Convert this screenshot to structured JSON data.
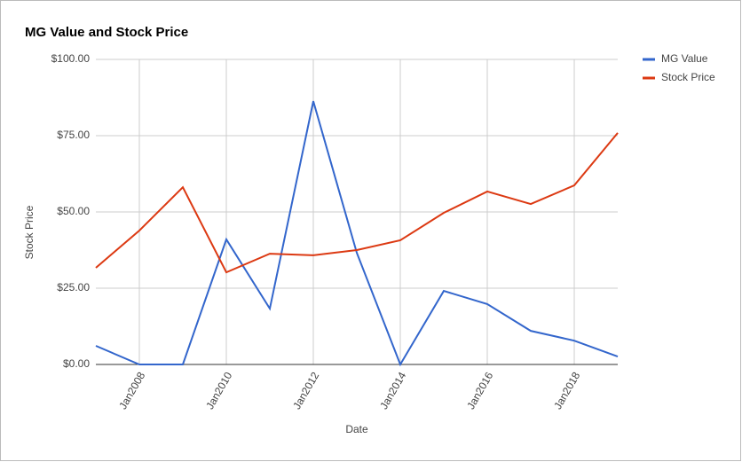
{
  "chart_data": {
    "type": "line",
    "title": "MG Value and Stock Price",
    "x_label": "Date",
    "y_label": "Stock Price",
    "categories": [
      null,
      "Jan2008",
      null,
      "Jan2010",
      null,
      "Jan2012",
      null,
      "Jan2014",
      null,
      "Jan2016",
      null,
      "Jan2018",
      null
    ],
    "series": [
      {
        "name": "MG Value",
        "color": "#3366cc",
        "values": [
          6.1,
          0,
          0,
          41,
          18.3,
          86.3,
          36.6,
          0,
          24.1,
          19.8,
          11,
          7.8,
          2.6
        ]
      },
      {
        "name": "Stock Price",
        "color": "#dc3912",
        "values": [
          31.7,
          43.9,
          58.1,
          30.2,
          36.3,
          35.8,
          37.5,
          40.7,
          49.7,
          56.7,
          52.6,
          58.7,
          75.9
        ]
      }
    ],
    "ylim": [
      0,
      100
    ],
    "yticks": [
      {
        "value": 0,
        "label": "$0.00"
      },
      {
        "value": 25,
        "label": "$25.00"
      },
      {
        "value": 50,
        "label": "$50.00"
      },
      {
        "value": 75,
        "label": "$75.00"
      },
      {
        "value": 100,
        "label": "$100.00"
      }
    ],
    "grid": true,
    "legend": "right"
  }
}
